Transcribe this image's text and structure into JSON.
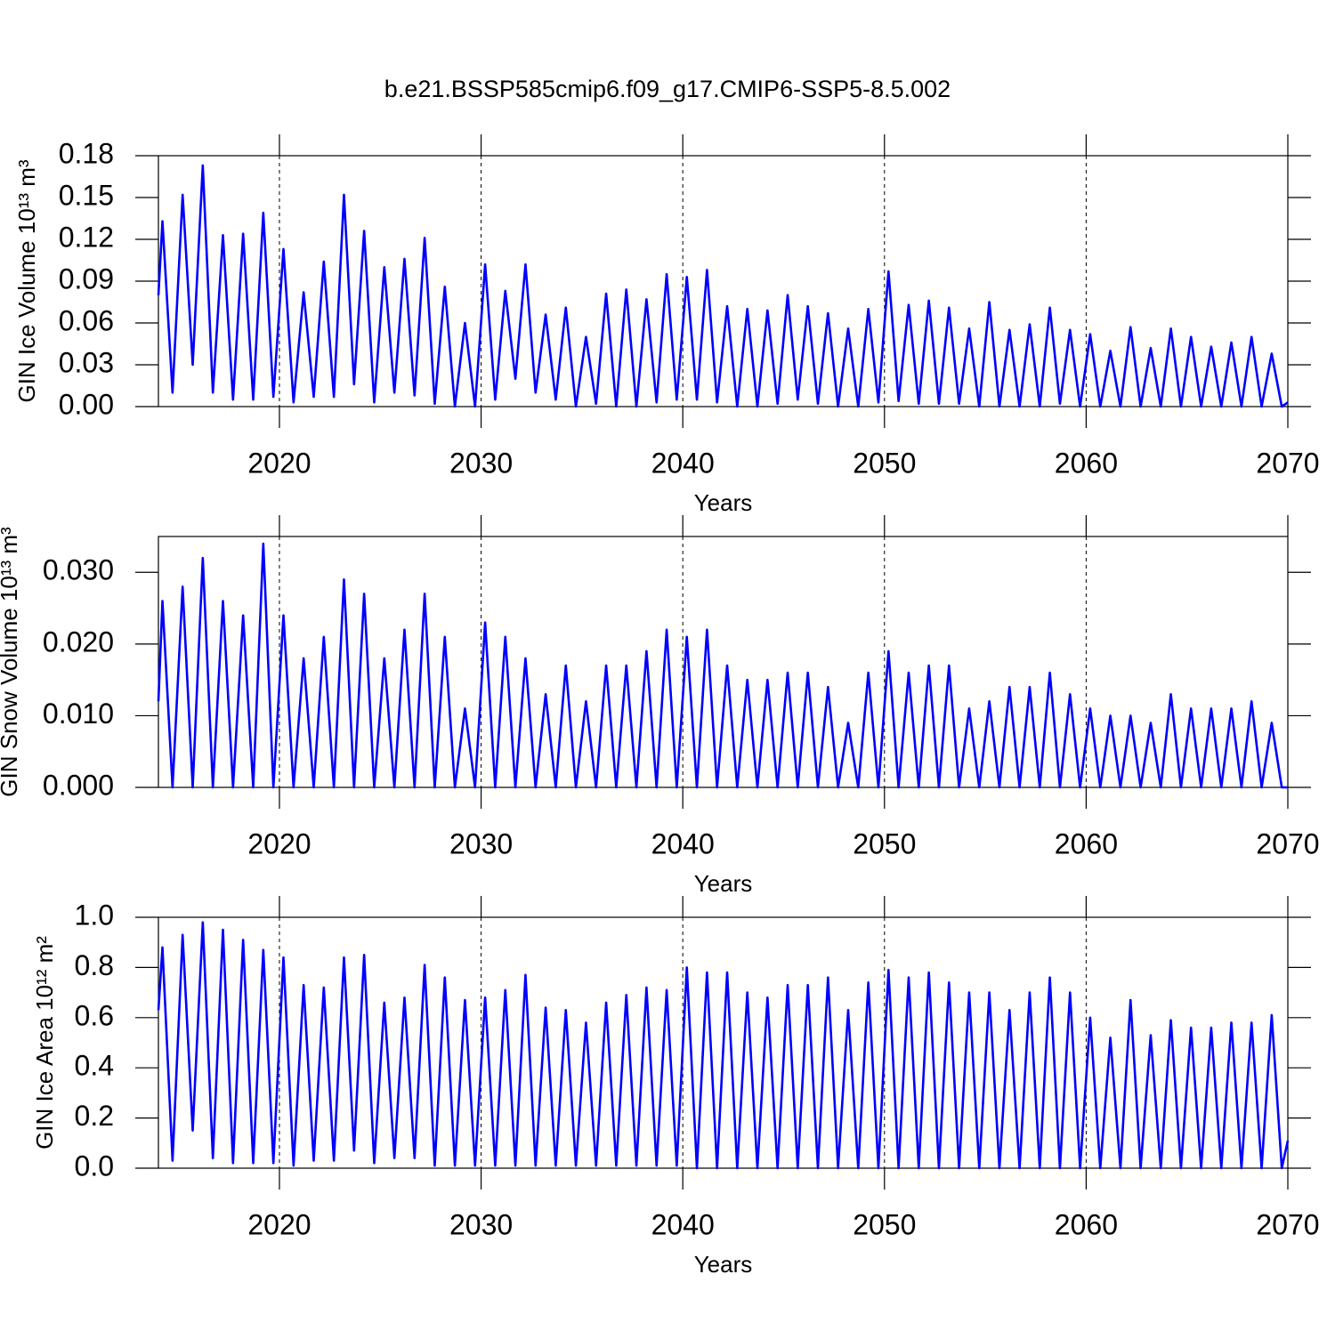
{
  "chart_data": [
    {
      "type": "line",
      "title": "b.e21.BSSP585cmip6.f09_g17.CMIP6-SSP5-8.5.002",
      "xlabel": "Years",
      "ylabel": "GIN Ice Volume 10¹³ m³",
      "xlim": [
        2014,
        2070
      ],
      "ylim": [
        0,
        0.18
      ],
      "xticks": [
        2020,
        2030,
        2040,
        2050,
        2060,
        2070
      ],
      "yticks": [
        {
          "value": 0,
          "label": "0.00"
        },
        0.03,
        0.06,
        0.09,
        0.12,
        0.15,
        0.18
      ],
      "xgrid": true,
      "x": [
        2014,
        2014.2,
        2014.7,
        2015.2,
        2015.7,
        2016.2,
        2016.7,
        2017.2,
        2017.7,
        2018.2,
        2018.7,
        2019.2,
        2019.7,
        2020.2,
        2020.7,
        2021.2,
        2021.7,
        2022.2,
        2022.7,
        2023.2,
        2023.7,
        2024.2,
        2024.7,
        2025.2,
        2025.7,
        2026.2,
        2026.7,
        2027.2,
        2027.7,
        2028.2,
        2028.7,
        2029.2,
        2029.7,
        2030.2,
        2030.7,
        2031.2,
        2031.7,
        2032.2,
        2032.7,
        2033.2,
        2033.7,
        2034.2,
        2034.7,
        2035.2,
        2035.7,
        2036.2,
        2036.7,
        2037.2,
        2037.7,
        2038.2,
        2038.7,
        2039.2,
        2039.7,
        2040.2,
        2040.7,
        2041.2,
        2041.7,
        2042.2,
        2042.7,
        2043.2,
        2043.7,
        2044.2,
        2044.7,
        2045.2,
        2045.7,
        2046.2,
        2046.7,
        2047.2,
        2047.7,
        2048.2,
        2048.7,
        2049.2,
        2049.7,
        2050.2,
        2050.7,
        2051.2,
        2051.7,
        2052.2,
        2052.7,
        2053.2,
        2053.7,
        2054.2,
        2054.7,
        2055.2,
        2055.7,
        2056.2,
        2056.7,
        2057.2,
        2057.7,
        2058.2,
        2058.7,
        2059.2,
        2059.7,
        2060.2,
        2060.7,
        2061.2,
        2061.7,
        2062.2,
        2062.7,
        2063.2,
        2063.7,
        2064.2,
        2064.7,
        2065.2,
        2065.7,
        2066.2,
        2066.7,
        2067.2,
        2067.7,
        2068.2,
        2068.7,
        2069.2,
        2069.7,
        2070
      ],
      "series": [
        {
          "color": "#0000ff",
          "values": [
            0.08,
            0.133,
            0.01,
            0.152,
            0.03,
            0.173,
            0.01,
            0.123,
            0.005,
            0.124,
            0.005,
            0.139,
            0.007,
            0.113,
            0.003,
            0.082,
            0.007,
            0.104,
            0.007,
            0.152,
            0.016,
            0.126,
            0.003,
            0.1,
            0.01,
            0.106,
            0.008,
            0.121,
            0.002,
            0.086,
            0,
            0.06,
            0,
            0.102,
            0.005,
            0.083,
            0.02,
            0.102,
            0.01,
            0.066,
            0.005,
            0.071,
            0,
            0.05,
            0.002,
            0.081,
            0,
            0.084,
            0,
            0.077,
            0.003,
            0.095,
            0.005,
            0.093,
            0.005,
            0.098,
            0.003,
            0.072,
            0,
            0.07,
            0,
            0.069,
            0.002,
            0.08,
            0.005,
            0.072,
            0.002,
            0.067,
            0,
            0.056,
            0,
            0.07,
            0.003,
            0.097,
            0.004,
            0.073,
            0.002,
            0.076,
            0.002,
            0.071,
            0.002,
            0.056,
            0,
            0.075,
            0,
            0.055,
            0,
            0.059,
            0,
            0.071,
            0.002,
            0.055,
            0,
            0.052,
            0,
            0.04,
            0,
            0.057,
            0,
            0.042,
            0,
            0.056,
            0,
            0.05,
            0,
            0.043,
            0,
            0.046,
            0,
            0.05,
            0,
            0.038,
            0,
            0.003
          ]
        }
      ]
    },
    {
      "type": "line",
      "xlabel": "Years",
      "ylabel": "GIN Snow Volume 10¹³ m³",
      "xlim": [
        2014,
        2070
      ],
      "ylim": [
        0,
        0.035
      ],
      "xticks": [
        2020,
        2030,
        2040,
        2050,
        2060,
        2070
      ],
      "yticks": [
        {
          "value": 0,
          "label": "0.000"
        },
        {
          "value": 0.01,
          "label": "0.010"
        },
        {
          "value": 0.02,
          "label": "0.020"
        },
        {
          "value": 0.03,
          "label": "0.030"
        }
      ],
      "xgrid": true,
      "x": [
        2014,
        2014.2,
        2014.7,
        2015.2,
        2015.7,
        2016.2,
        2016.7,
        2017.2,
        2017.7,
        2018.2,
        2018.7,
        2019.2,
        2019.7,
        2020.2,
        2020.7,
        2021.2,
        2021.7,
        2022.2,
        2022.7,
        2023.2,
        2023.7,
        2024.2,
        2024.7,
        2025.2,
        2025.7,
        2026.2,
        2026.7,
        2027.2,
        2027.7,
        2028.2,
        2028.7,
        2029.2,
        2029.7,
        2030.2,
        2030.7,
        2031.2,
        2031.7,
        2032.2,
        2032.7,
        2033.2,
        2033.7,
        2034.2,
        2034.7,
        2035.2,
        2035.7,
        2036.2,
        2036.7,
        2037.2,
        2037.7,
        2038.2,
        2038.7,
        2039.2,
        2039.7,
        2040.2,
        2040.7,
        2041.2,
        2041.7,
        2042.2,
        2042.7,
        2043.2,
        2043.7,
        2044.2,
        2044.7,
        2045.2,
        2045.7,
        2046.2,
        2046.7,
        2047.2,
        2047.7,
        2048.2,
        2048.7,
        2049.2,
        2049.7,
        2050.2,
        2050.7,
        2051.2,
        2051.7,
        2052.2,
        2052.7,
        2053.2,
        2053.7,
        2054.2,
        2054.7,
        2055.2,
        2055.7,
        2056.2,
        2056.7,
        2057.2,
        2057.7,
        2058.2,
        2058.7,
        2059.2,
        2059.7,
        2060.2,
        2060.7,
        2061.2,
        2061.7,
        2062.2,
        2062.7,
        2063.2,
        2063.7,
        2064.2,
        2064.7,
        2065.2,
        2065.7,
        2066.2,
        2066.7,
        2067.2,
        2067.7,
        2068.2,
        2068.7,
        2069.2,
        2069.7,
        2070
      ],
      "series": [
        {
          "color": "#0000ff",
          "values": [
            0.012,
            0.026,
            0,
            0.028,
            0,
            0.032,
            0,
            0.026,
            0,
            0.024,
            0,
            0.034,
            0,
            0.024,
            0,
            0.018,
            0,
            0.021,
            0,
            0.029,
            0,
            0.027,
            0,
            0.018,
            0,
            0.022,
            0,
            0.027,
            0,
            0.021,
            0,
            0.011,
            0,
            0.023,
            0,
            0.021,
            0,
            0.018,
            0,
            0.013,
            0,
            0.017,
            0,
            0.012,
            0,
            0.017,
            0,
            0.017,
            0,
            0.019,
            0,
            0.022,
            0,
            0.021,
            0,
            0.022,
            0,
            0.017,
            0,
            0.015,
            0,
            0.015,
            0,
            0.016,
            0,
            0.016,
            0,
            0.014,
            0,
            0.009,
            0,
            0.016,
            0,
            0.019,
            0,
            0.016,
            0,
            0.017,
            0,
            0.017,
            0,
            0.011,
            0,
            0.012,
            0,
            0.014,
            0,
            0.014,
            0,
            0.016,
            0,
            0.013,
            0,
            0.011,
            0,
            0.01,
            0,
            0.01,
            0,
            0.009,
            0,
            0.013,
            0,
            0.011,
            0,
            0.011,
            0,
            0.011,
            0,
            0.012,
            0,
            0.009,
            0,
            0
          ]
        }
      ]
    },
    {
      "type": "line",
      "xlabel": "Years",
      "ylabel": "GIN Ice Area 10¹² m²",
      "xlim": [
        2014,
        2070
      ],
      "ylim": [
        0,
        1
      ],
      "xticks": [
        2020,
        2030,
        2040,
        2050,
        2060,
        2070
      ],
      "yticks": [
        {
          "value": 0,
          "label": "0.0"
        },
        0.2,
        0.4,
        0.6,
        0.8,
        {
          "value": 1,
          "label": "1.0"
        }
      ],
      "xgrid": true,
      "x": [
        2014,
        2014.2,
        2014.7,
        2015.2,
        2015.7,
        2016.2,
        2016.7,
        2017.2,
        2017.7,
        2018.2,
        2018.7,
        2019.2,
        2019.7,
        2020.2,
        2020.7,
        2021.2,
        2021.7,
        2022.2,
        2022.7,
        2023.2,
        2023.7,
        2024.2,
        2024.7,
        2025.2,
        2025.7,
        2026.2,
        2026.7,
        2027.2,
        2027.7,
        2028.2,
        2028.7,
        2029.2,
        2029.7,
        2030.2,
        2030.7,
        2031.2,
        2031.7,
        2032.2,
        2032.7,
        2033.2,
        2033.7,
        2034.2,
        2034.7,
        2035.2,
        2035.7,
        2036.2,
        2036.7,
        2037.2,
        2037.7,
        2038.2,
        2038.7,
        2039.2,
        2039.7,
        2040.2,
        2040.7,
        2041.2,
        2041.7,
        2042.2,
        2042.7,
        2043.2,
        2043.7,
        2044.2,
        2044.7,
        2045.2,
        2045.7,
        2046.2,
        2046.7,
        2047.2,
        2047.7,
        2048.2,
        2048.7,
        2049.2,
        2049.7,
        2050.2,
        2050.7,
        2051.2,
        2051.7,
        2052.2,
        2052.7,
        2053.2,
        2053.7,
        2054.2,
        2054.7,
        2055.2,
        2055.7,
        2056.2,
        2056.7,
        2057.2,
        2057.7,
        2058.2,
        2058.7,
        2059.2,
        2059.7,
        2060.2,
        2060.7,
        2061.2,
        2061.7,
        2062.2,
        2062.7,
        2063.2,
        2063.7,
        2064.2,
        2064.7,
        2065.2,
        2065.7,
        2066.2,
        2066.7,
        2067.2,
        2067.7,
        2068.2,
        2068.7,
        2069.2,
        2069.7,
        2070
      ],
      "series": [
        {
          "color": "#0000ff",
          "values": [
            0.63,
            0.88,
            0.03,
            0.93,
            0.15,
            0.98,
            0.04,
            0.95,
            0.02,
            0.91,
            0.02,
            0.87,
            0.02,
            0.84,
            0.01,
            0.73,
            0.03,
            0.72,
            0.03,
            0.84,
            0.07,
            0.85,
            0.02,
            0.66,
            0.04,
            0.68,
            0.04,
            0.81,
            0.01,
            0.76,
            0.01,
            0.67,
            0.01,
            0.68,
            0.01,
            0.71,
            0.01,
            0.77,
            0.01,
            0.64,
            0.01,
            0.63,
            0.01,
            0.58,
            0.01,
            0.66,
            0.01,
            0.69,
            0.01,
            0.72,
            0.01,
            0.71,
            0.01,
            0.8,
            0,
            0.78,
            0,
            0.78,
            0,
            0.7,
            0,
            0.68,
            0,
            0.73,
            0,
            0.73,
            0,
            0.76,
            0,
            0.63,
            0,
            0.74,
            0,
            0.79,
            0,
            0.76,
            0,
            0.78,
            0,
            0.74,
            0,
            0.7,
            0,
            0.7,
            0,
            0.63,
            0,
            0.7,
            0,
            0.76,
            0,
            0.7,
            0,
            0.6,
            0,
            0.52,
            0,
            0.67,
            0,
            0.53,
            0,
            0.59,
            0,
            0.56,
            0,
            0.56,
            0,
            0.58,
            0,
            0.58,
            0,
            0.61,
            0,
            0.11
          ]
        }
      ]
    }
  ]
}
